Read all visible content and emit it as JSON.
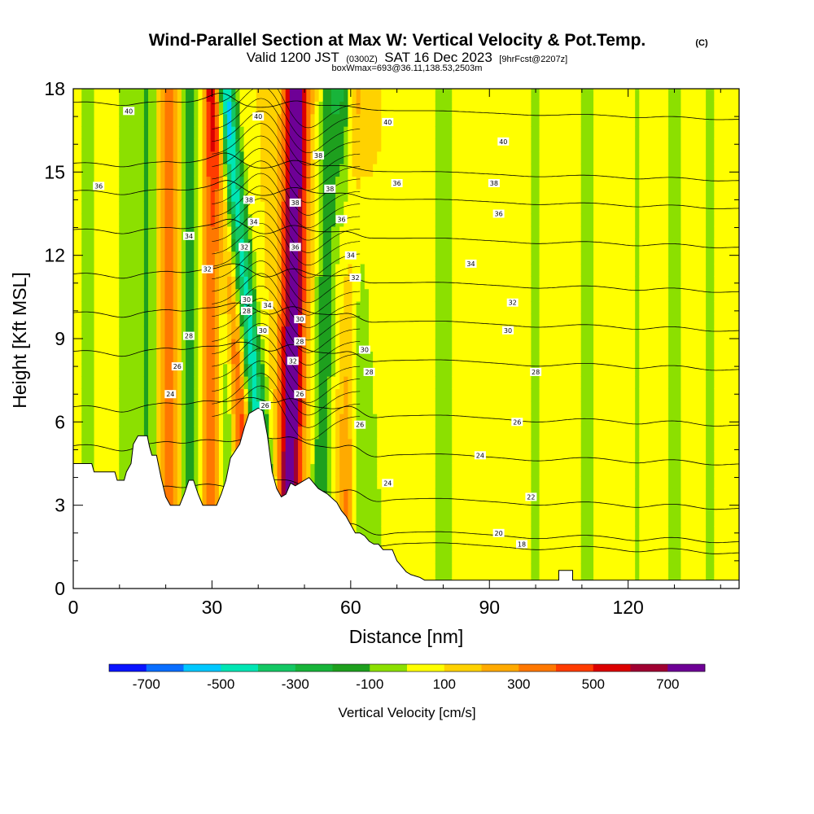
{
  "chart_data": {
    "type": "heatmap",
    "title": "Wind-Parallel Section at Max W: Vertical Velocity & Pot.Temp.",
    "title_mark": "(C)",
    "subtitle": {
      "main_a": "Valid 1200 JST",
      "small_a": "(0300Z)",
      "main_b": "SAT 16 Dec 2023",
      "small_b": "[9hrFcst@2207z]"
    },
    "subtitle2": "boxWmax=693@36.11,138.53,2503m",
    "xlabel": "Distance [nm]",
    "ylabel": "Height [Kft MSL]",
    "xlim": [
      0,
      144
    ],
    "ylim": [
      0,
      18
    ],
    "x_ticks": [
      "0",
      "30",
      "60",
      "90",
      "120"
    ],
    "x_tick_values": [
      0,
      30,
      60,
      90,
      120
    ],
    "y_ticks": [
      "0",
      "3",
      "6",
      "9",
      "12",
      "15",
      "18"
    ],
    "y_tick_values": [
      0,
      3,
      6,
      9,
      12,
      15,
      18
    ],
    "colorbar": {
      "label": "Vertical Velocity [cm/s]",
      "levels": [
        -800,
        -700,
        -600,
        -500,
        -400,
        -300,
        -200,
        -100,
        0,
        100,
        200,
        300,
        400,
        500,
        600,
        700,
        800
      ],
      "colors": [
        "#0a14ff",
        "#0a6eff",
        "#00c8ff",
        "#00e6b4",
        "#14c864",
        "#18b43a",
        "#1ea01e",
        "#8ce000",
        "#ffff00",
        "#ffd200",
        "#ffaa00",
        "#ff7800",
        "#ff3c00",
        "#dc0000",
        "#a00032",
        "#6e0096"
      ],
      "tick_labels": [
        "-700",
        "-500",
        "-300",
        "-100",
        "100",
        "300",
        "500",
        "700"
      ],
      "tick_values": [
        -700,
        -500,
        -300,
        -100,
        100,
        300,
        500,
        700
      ]
    },
    "terrain": [
      [
        0,
        4.5
      ],
      [
        4,
        4.5
      ],
      [
        4.5,
        4.2
      ],
      [
        9,
        4.2
      ],
      [
        9.5,
        3.9
      ],
      [
        11,
        3.9
      ],
      [
        11.5,
        4.2
      ],
      [
        12.5,
        4.5
      ],
      [
        13,
        5.2
      ],
      [
        14,
        5.5
      ],
      [
        16,
        5.5
      ],
      [
        16.5,
        5.1
      ],
      [
        17,
        4.8
      ],
      [
        18,
        4.8
      ],
      [
        19,
        4.0
      ],
      [
        20,
        3.3
      ],
      [
        21,
        3.0
      ],
      [
        23,
        3.0
      ],
      [
        24,
        3.4
      ],
      [
        25,
        3.9
      ],
      [
        26,
        3.9
      ],
      [
        27,
        3.4
      ],
      [
        28,
        3.0
      ],
      [
        31,
        3.0
      ],
      [
        32,
        3.4
      ],
      [
        33,
        3.9
      ],
      [
        34,
        4.7
      ],
      [
        36,
        5.2
      ],
      [
        37,
        5.8
      ],
      [
        38,
        6.3
      ],
      [
        40,
        6.5
      ],
      [
        41,
        6.4
      ],
      [
        42,
        5.5
      ],
      [
        43,
        4.2
      ],
      [
        44,
        3.6
      ],
      [
        45,
        3.3
      ],
      [
        46,
        3.4
      ],
      [
        47,
        3.8
      ],
      [
        48,
        3.7
      ],
      [
        49,
        3.8
      ],
      [
        51,
        4.0
      ],
      [
        52,
        3.8
      ],
      [
        53,
        3.6
      ],
      [
        55,
        3.4
      ],
      [
        57,
        3.1
      ],
      [
        58,
        2.8
      ],
      [
        59,
        2.6
      ],
      [
        60,
        2.3
      ],
      [
        61,
        2.0
      ],
      [
        62,
        2.0
      ],
      [
        63,
        1.9
      ],
      [
        64,
        1.7
      ],
      [
        65,
        1.6
      ],
      [
        66,
        1.6
      ],
      [
        67,
        1.4
      ],
      [
        69,
        1.4
      ],
      [
        70,
        1.0
      ],
      [
        71,
        0.8
      ],
      [
        72,
        0.6
      ],
      [
        73,
        0.5
      ],
      [
        75,
        0.4
      ],
      [
        76,
        0.3
      ],
      [
        105,
        0.3
      ],
      [
        105,
        0.65
      ],
      [
        108,
        0.65
      ],
      [
        108,
        0.3
      ],
      [
        144,
        0.3
      ]
    ],
    "velocity_field": {
      "base": 100,
      "bands": [
        {
          "x0": 3,
          "slope": 0,
          "width": 2.5,
          "amp": -150
        },
        {
          "x0": 11,
          "slope": 0,
          "width": 2.0,
          "amp": -150
        },
        {
          "x0": 16,
          "slope": 0,
          "width": 2.5,
          "amp": -220
        },
        {
          "x0": 20.5,
          "slope": 0,
          "width": 2.0,
          "amp": 280
        },
        {
          "x0": 26,
          "slope": 0,
          "width": 2.5,
          "amp": -270
        },
        {
          "x0": 29.5,
          "slope": 0,
          "width": 2.3,
          "amp": 330
        },
        {
          "x0": 33,
          "slope": 0,
          "width": 2.0,
          "amp": -220
        },
        {
          "x0": 39,
          "slope": -0.45,
          "width": 2.0,
          "amp": 370
        },
        {
          "x0": 43.5,
          "slope": -0.6,
          "width": 2.2,
          "amp": -560
        },
        {
          "x0": 46.5,
          "slope": 0.1,
          "width": 2.6,
          "amp": 720
        },
        {
          "x0": 53,
          "slope": 0.15,
          "width": 2.2,
          "amp": -270
        },
        {
          "x0": 59,
          "slope": 0.1,
          "width": 2.0,
          "amp": 260
        },
        {
          "x0": 62,
          "slope": -0.2,
          "width": 2.0,
          "amp": -200
        },
        {
          "x0": 66,
          "slope": -0.35,
          "width": 2.0,
          "amp": -160
        },
        {
          "x0": 80,
          "slope": 0,
          "width": 5.0,
          "amp": -110
        },
        {
          "x0": 100,
          "slope": 0,
          "width": 3.5,
          "amp": -110
        },
        {
          "x0": 111,
          "slope": 0,
          "width": 3.5,
          "amp": -110
        },
        {
          "x0": 122,
          "slope": 0,
          "width": 2.5,
          "amp": -110
        },
        {
          "x0": 130,
          "slope": 0,
          "width": 3.5,
          "amp": -110
        },
        {
          "x0": 138,
          "slope": 0,
          "width": 3.0,
          "amp": -110
        }
      ]
    },
    "theta_contours": [
      {
        "label": "40",
        "y": 17.2
      },
      {
        "label": "38",
        "y": 15.0
      },
      {
        "label": "36",
        "y": 14.0
      },
      {
        "label": "34",
        "y": 12.6
      },
      {
        "label": "32",
        "y": 11.0
      },
      {
        "label": "30",
        "y": 9.6
      },
      {
        "label": "28",
        "y": 8.2
      },
      {
        "label": "26",
        "y": 6.2
      },
      {
        "label": "24",
        "y": 4.8
      },
      {
        "label": "22",
        "y": 3.2
      },
      {
        "label": "20",
        "y": 2.0
      },
      {
        "label": "18",
        "y": 1.6
      }
    ],
    "contour_labels": [
      {
        "t": "40",
        "x": 12,
        "y": 17.2
      },
      {
        "t": "36",
        "x": 5.5,
        "y": 14.5
      },
      {
        "t": "34",
        "x": 25,
        "y": 12.7
      },
      {
        "t": "32",
        "x": 29,
        "y": 11.5
      },
      {
        "t": "30",
        "x": 37.5,
        "y": 10.4
      },
      {
        "t": "28",
        "x": 25,
        "y": 9.1
      },
      {
        "t": "26",
        "x": 22.5,
        "y": 8.0
      },
      {
        "t": "24",
        "x": 21,
        "y": 7.0
      },
      {
        "t": "38",
        "x": 53,
        "y": 15.6
      },
      {
        "t": "40",
        "x": 68,
        "y": 16.8
      },
      {
        "t": "40",
        "x": 93,
        "y": 16.1
      },
      {
        "t": "36",
        "x": 70,
        "y": 14.6
      },
      {
        "t": "38",
        "x": 91,
        "y": 14.6
      },
      {
        "t": "36",
        "x": 92,
        "y": 13.5
      },
      {
        "t": "34",
        "x": 86,
        "y": 11.7
      },
      {
        "t": "32",
        "x": 95,
        "y": 10.3
      },
      {
        "t": "30",
        "x": 94,
        "y": 9.3
      },
      {
        "t": "28",
        "x": 100,
        "y": 7.8
      },
      {
        "t": "26",
        "x": 96,
        "y": 6.0
      },
      {
        "t": "24",
        "x": 88,
        "y": 4.8
      },
      {
        "t": "22",
        "x": 99,
        "y": 3.3
      },
      {
        "t": "20",
        "x": 92,
        "y": 2.0
      },
      {
        "t": "18",
        "x": 97,
        "y": 1.6
      },
      {
        "t": "28",
        "x": 64,
        "y": 7.8
      },
      {
        "t": "26",
        "x": 62,
        "y": 5.9
      },
      {
        "t": "24",
        "x": 68,
        "y": 3.8
      },
      {
        "t": "30",
        "x": 63,
        "y": 8.6
      },
      {
        "t": "32",
        "x": 61,
        "y": 11.2
      },
      {
        "t": "34",
        "x": 60,
        "y": 12.0
      },
      {
        "t": "36",
        "x": 58,
        "y": 13.3
      },
      {
        "t": "38",
        "x": 55.5,
        "y": 14.4
      },
      {
        "t": "40",
        "x": 40,
        "y": 17.0
      },
      {
        "t": "38",
        "x": 38,
        "y": 14.0
      },
      {
        "t": "34",
        "x": 39,
        "y": 13.2
      },
      {
        "t": "32",
        "x": 37,
        "y": 12.3
      },
      {
        "t": "28",
        "x": 37.5,
        "y": 10.0
      },
      {
        "t": "34",
        "x": 42,
        "y": 10.2
      },
      {
        "t": "30",
        "x": 41,
        "y": 9.3
      },
      {
        "t": "26",
        "x": 41.5,
        "y": 6.6
      },
      {
        "t": "38",
        "x": 48,
        "y": 13.9
      },
      {
        "t": "36",
        "x": 48,
        "y": 12.3
      },
      {
        "t": "30",
        "x": 49,
        "y": 9.7
      },
      {
        "t": "28",
        "x": 49,
        "y": 8.9
      },
      {
        "t": "32",
        "x": 47.5,
        "y": 8.2
      },
      {
        "t": "26",
        "x": 49,
        "y": 7.0
      }
    ]
  }
}
